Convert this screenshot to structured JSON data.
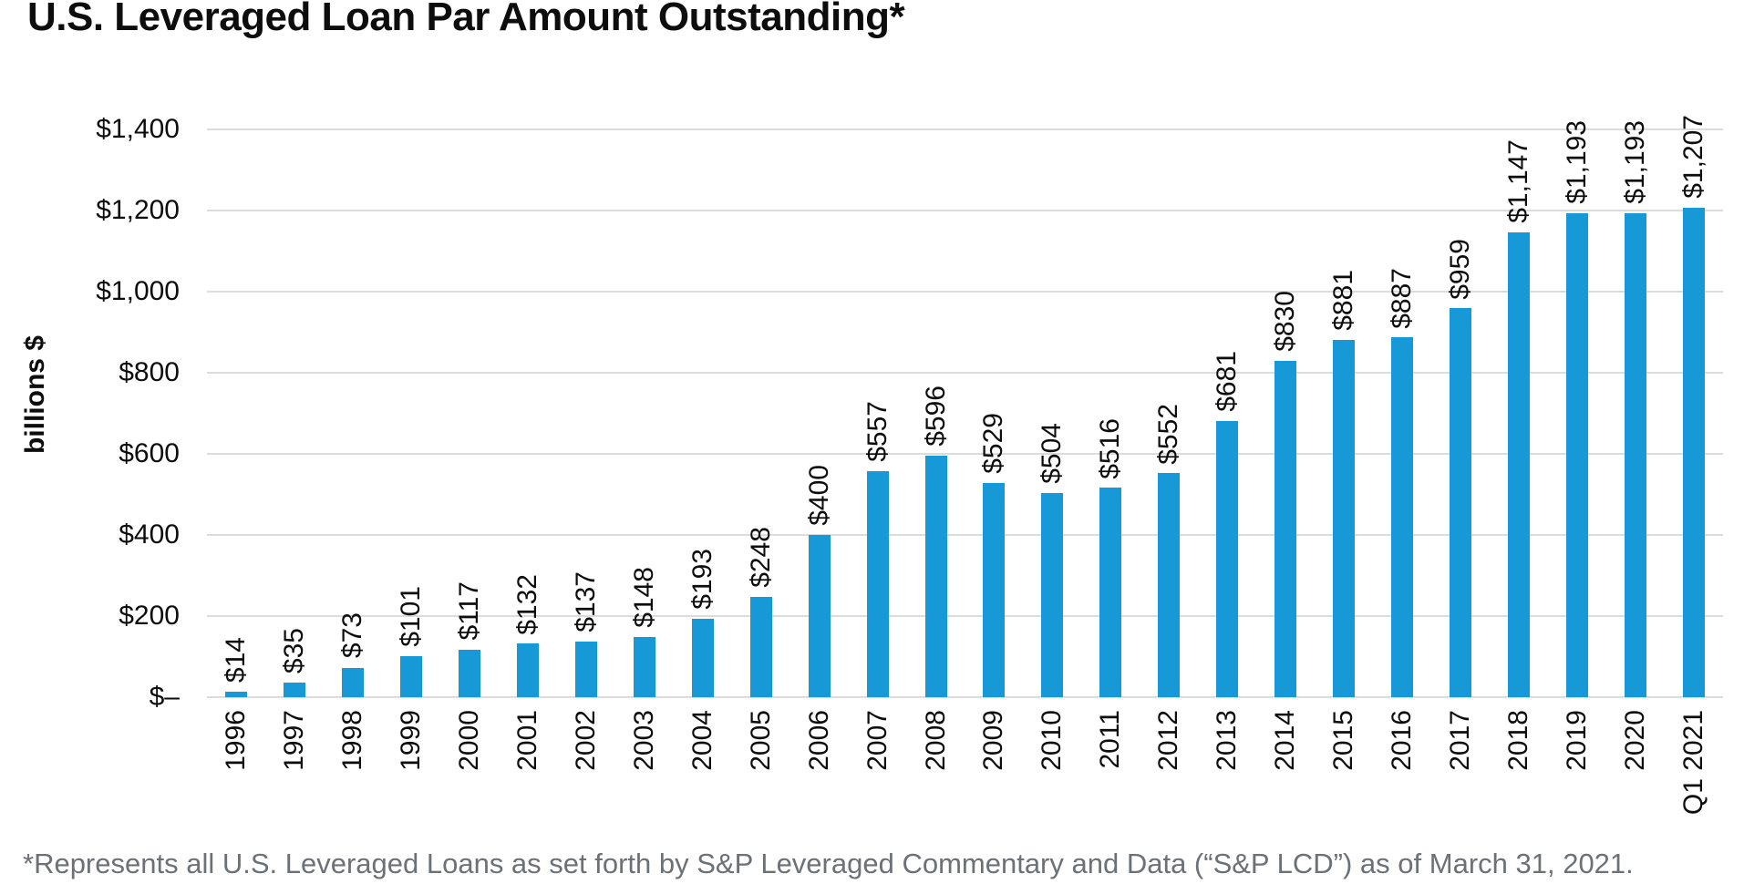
{
  "title": "U.S. Leveraged Loan Par Amount Outstanding*",
  "y_axis": {
    "label": "billions $",
    "ticks": [
      "$1,400",
      "$1,200",
      "$1,000",
      "$800",
      "$600",
      "$400",
      "$200",
      "$–"
    ]
  },
  "footnote": "*Represents all U.S. Leveraged Loans as set forth by S&P Leveraged Commentary and Data (“S&P LCD”) as of March 31, 2021.",
  "colors": {
    "bar": "#1799d7",
    "gridline": "#dcdcdc",
    "title_text": "#0d0d0d",
    "footnote_text": "#6b7177"
  },
  "chart_data": {
    "type": "bar",
    "title": "U.S. Leveraged Loan Par Amount Outstanding*",
    "xlabel": "",
    "ylabel": "billions $",
    "ylim": [
      0,
      1400
    ],
    "ytick_step": 200,
    "grid": true,
    "legend": "none",
    "bar_color": "#1799d7",
    "categories": [
      "1996",
      "1997",
      "1998",
      "1999",
      "2000",
      "2001",
      "2002",
      "2003",
      "2004",
      "2005",
      "2006",
      "2007",
      "2008",
      "2009",
      "2010",
      "2011",
      "2012",
      "2013",
      "2014",
      "2015",
      "2016",
      "2017",
      "2018",
      "2019",
      "2020",
      "Q1 2021"
    ],
    "values": [
      14,
      35,
      73,
      101,
      117,
      132,
      137,
      148,
      193,
      248,
      400,
      557,
      596,
      529,
      504,
      516,
      552,
      681,
      830,
      881,
      887,
      959,
      1147,
      1193,
      1193,
      1207
    ],
    "value_labels": [
      "$14",
      "$35",
      "$73",
      "$101",
      "$117",
      "$132",
      "$137",
      "$148",
      "$193",
      "$248",
      "$400",
      "$557",
      "$596",
      "$529",
      "$504",
      "$516",
      "$552",
      "$681",
      "$830",
      "$881",
      "$887",
      "$959",
      "$1,147",
      "$1,193",
      "$1,193",
      "$1,207"
    ]
  }
}
